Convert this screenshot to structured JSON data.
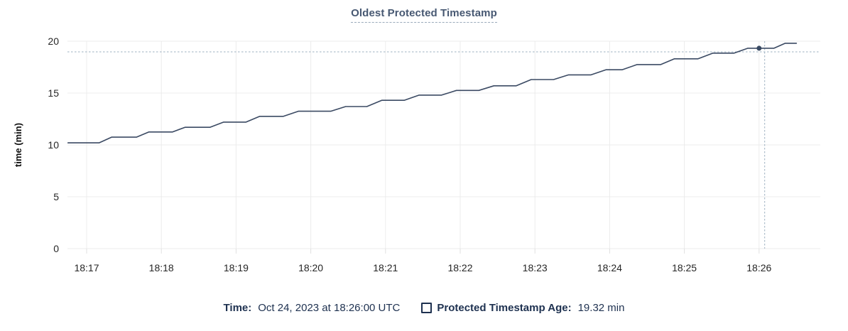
{
  "title": "Oldest Protected Timestamp",
  "footer": {
    "time_label": "Time:",
    "time_value": "Oct 24, 2023 at 18:26:00 UTC",
    "series_label": "Protected Timestamp Age:",
    "series_value": "19.32 min",
    "checkbox_icon": "legend-checkbox"
  },
  "colors": {
    "line": "#3b4a63",
    "dot": "#394a63",
    "grid": "#ececec",
    "grid_tick": "#e0e0e0",
    "crosshair": "#9db0c0",
    "tick_text": "#262626",
    "axis_label_text": "#111111",
    "title_text": "#475872",
    "footer_text": "#1e3150"
  },
  "chart_data": {
    "type": "line",
    "title": "Oldest Protected Timestamp",
    "xlabel": "",
    "ylabel": "time (min)",
    "ylim": [
      0,
      20
    ],
    "y_ticks": [
      0,
      5,
      10,
      15,
      20
    ],
    "x_ticks": [
      "18:17",
      "18:18",
      "18:19",
      "18:20",
      "18:21",
      "18:22",
      "18:23",
      "18:24",
      "18:25",
      "18:26"
    ],
    "x_tick_interval_sec": 60,
    "grid": true,
    "legend_position": "bottom",
    "series": [
      {
        "name": "Protected Timestamp Age",
        "unit": "min",
        "points": [
          [
            -15,
            10.2
          ],
          [
            10,
            10.2
          ],
          [
            20,
            10.75
          ],
          [
            40,
            10.75
          ],
          [
            50,
            11.25
          ],
          [
            69,
            11.25
          ],
          [
            79,
            11.7
          ],
          [
            99,
            11.7
          ],
          [
            110,
            12.2
          ],
          [
            128,
            12.2
          ],
          [
            139,
            12.75
          ],
          [
            158,
            12.75
          ],
          [
            170,
            13.25
          ],
          [
            196,
            13.25
          ],
          [
            208,
            13.7
          ],
          [
            225,
            13.7
          ],
          [
            237,
            14.3
          ],
          [
            255,
            14.3
          ],
          [
            267,
            14.8
          ],
          [
            285,
            14.8
          ],
          [
            297,
            15.25
          ],
          [
            315,
            15.25
          ],
          [
            327,
            15.7
          ],
          [
            345,
            15.7
          ],
          [
            357,
            16.3
          ],
          [
            375,
            16.3
          ],
          [
            387,
            16.75
          ],
          [
            405,
            16.75
          ],
          [
            417,
            17.25
          ],
          [
            430,
            17.25
          ],
          [
            442,
            17.75
          ],
          [
            461,
            17.75
          ],
          [
            472,
            18.3
          ],
          [
            491,
            18.3
          ],
          [
            503,
            18.85
          ],
          [
            520,
            18.85
          ],
          [
            531,
            19.32
          ],
          [
            552,
            19.32
          ],
          [
            561,
            19.8
          ],
          [
            570,
            19.8
          ]
        ]
      }
    ],
    "selected_point": {
      "time": "18:26:00",
      "t_sec": 540,
      "value": 19.32
    },
    "crosshair": {
      "t_sec": 544.5,
      "value": 18.97
    }
  }
}
